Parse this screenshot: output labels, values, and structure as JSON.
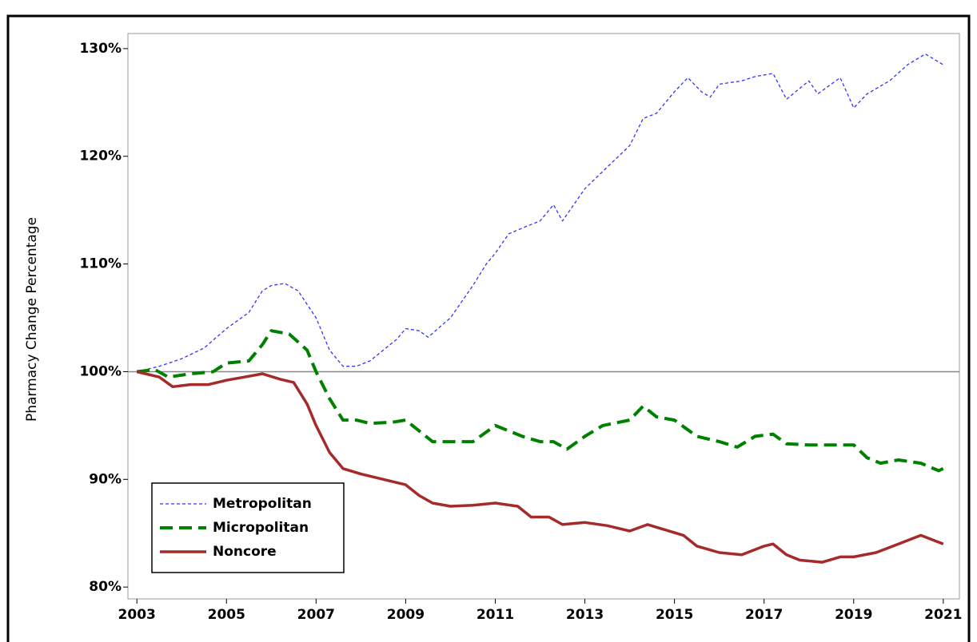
{
  "chart_data": {
    "type": "line",
    "y_label": "Pharmacy Change Percentage",
    "xlim": [
      2002.8,
      2021.36
    ],
    "xticks": [
      2003,
      2005,
      2007,
      2009,
      2011,
      2013,
      2015,
      2017,
      2019,
      2021
    ],
    "ylim": [
      78.9,
      131.4
    ],
    "yticks": [
      {
        "value": 80,
        "label": "80%"
      },
      {
        "value": 90,
        "label": "90%"
      },
      {
        "value": 100,
        "label": "100%"
      },
      {
        "value": 110,
        "label": "110%"
      },
      {
        "value": 120,
        "label": "120%"
      },
      {
        "value": 130,
        "label": "130%"
      }
    ],
    "reference_line": 100,
    "legend": "lower left",
    "series": [
      {
        "name": "Metropolitan",
        "color": "#3333ff",
        "style": "dotted",
        "x": [
          2003,
          2003.5,
          2004,
          2004.5,
          2005,
          2005.5,
          2005.8,
          2006,
          2006.3,
          2006.6,
          2007,
          2007.3,
          2007.6,
          2007.9,
          2008.2,
          2008.5,
          2008.8,
          2009,
          2009.3,
          2009.5,
          2010,
          2010.5,
          2010.8,
          2011,
          2011.3,
          2011.7,
          2012,
          2012.3,
          2012.5,
          2013,
          2013.5,
          2014,
          2014.3,
          2014.6,
          2015,
          2015.3,
          2015.6,
          2015.8,
          2016,
          2016.5,
          2016.8,
          2017.2,
          2017.5,
          2018,
          2018.2,
          2018.7,
          2019,
          2019.3,
          2019.8,
          2020.2,
          2020.6,
          2021
        ],
        "values": [
          100,
          100.5,
          101.2,
          102.2,
          104,
          105.5,
          107.5,
          108,
          108.2,
          107.5,
          105,
          102,
          100.5,
          100.5,
          101,
          102,
          103,
          104,
          103.8,
          103.2,
          105,
          108,
          110,
          111,
          112.8,
          113.5,
          114,
          115.5,
          114,
          117,
          119,
          121,
          123.5,
          124,
          126,
          127.3,
          126,
          125.5,
          126.7,
          127,
          127.4,
          127.7,
          125.3,
          127,
          125.8,
          127.3,
          124.5,
          125.8,
          127,
          128.5,
          129.5,
          128.5
        ]
      },
      {
        "name": "Micropolitan",
        "color": "#008000",
        "style": "dashed",
        "x": [
          2003,
          2003.4,
          2003.7,
          2004.2,
          2004.7,
          2005,
          2005.5,
          2005.8,
          2006,
          2006.4,
          2006.8,
          2007,
          2007.3,
          2007.6,
          2007.9,
          2008.2,
          2008.7,
          2009,
          2009.3,
          2009.6,
          2010,
          2010.5,
          2011,
          2011.3,
          2011.6,
          2012,
          2012.3,
          2012.6,
          2013,
          2013.4,
          2014,
          2014.3,
          2014.6,
          2015,
          2015.5,
          2016,
          2016.4,
          2016.8,
          2017.2,
          2017.5,
          2018,
          2018.5,
          2019,
          2019.3,
          2019.6,
          2020,
          2020.5,
          2020.9,
          2021
        ],
        "values": [
          100,
          100.2,
          99.5,
          99.8,
          100,
          100.8,
          101,
          102.5,
          103.8,
          103.5,
          102,
          100,
          97.5,
          95.5,
          95.5,
          95.2,
          95.3,
          95.5,
          94.5,
          93.5,
          93.5,
          93.5,
          95,
          94.5,
          94,
          93.5,
          93.5,
          92.8,
          94,
          95,
          95.5,
          96.8,
          95.8,
          95.5,
          94,
          93.5,
          93,
          94,
          94.2,
          93.3,
          93.2,
          93.2,
          93.2,
          92,
          91.5,
          91.8,
          91.5,
          90.8,
          91
        ]
      },
      {
        "name": "Noncore",
        "color": "#a52a2a",
        "style": "solid",
        "x": [
          2003,
          2003.5,
          2003.8,
          2004.2,
          2004.6,
          2005,
          2005.4,
          2005.8,
          2006.2,
          2006.5,
          2006.8,
          2007,
          2007.3,
          2007.6,
          2008,
          2008.5,
          2009,
          2009.3,
          2009.6,
          2010,
          2010.5,
          2011,
          2011.5,
          2011.8,
          2012.2,
          2012.5,
          2013,
          2013.5,
          2014,
          2014.4,
          2014.8,
          2015.2,
          2015.5,
          2016,
          2016.5,
          2017,
          2017.2,
          2017.5,
          2017.8,
          2018.3,
          2018.7,
          2019,
          2019.5,
          2020,
          2020.5,
          2021
        ],
        "values": [
          100,
          99.5,
          98.6,
          98.8,
          98.8,
          99.2,
          99.5,
          99.8,
          99.3,
          99,
          97,
          95,
          92.5,
          91,
          90.5,
          90,
          89.5,
          88.5,
          87.8,
          87.5,
          87.6,
          87.8,
          87.5,
          86.5,
          86.5,
          85.8,
          86,
          85.7,
          85.2,
          85.8,
          85.3,
          84.8,
          83.8,
          83.2,
          83,
          83.8,
          84,
          83,
          82.5,
          82.3,
          82.8,
          82.8,
          83.2,
          84,
          84.8,
          84
        ]
      }
    ]
  }
}
